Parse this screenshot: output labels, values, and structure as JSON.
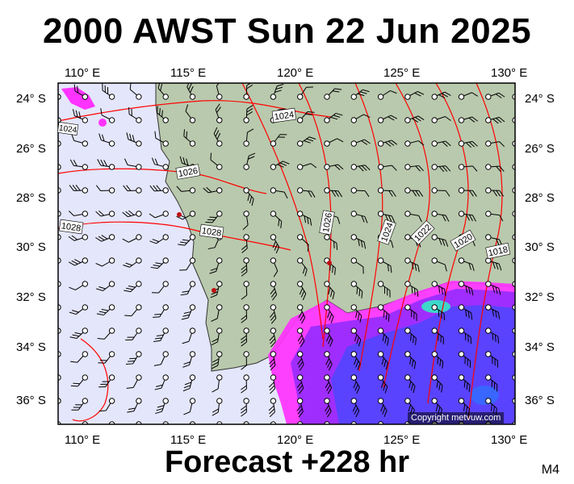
{
  "title": "2000 AWST Sun 22 Jun 2025",
  "footer": "Forecast +228 hr",
  "model_tag": "M4",
  "copyright": "Copyright metvuw.com",
  "lon_labels": [
    "110° E",
    "115° E",
    "120° E",
    "125° E",
    "130° E"
  ],
  "lat_labels": [
    "24° S",
    "26° S",
    "28° S",
    "30° S",
    "32° S",
    "34° S",
    "36° S"
  ],
  "isobar_labels": [
    "1024",
    "1024",
    "1026",
    "1026",
    "1028",
    "1028",
    "1024",
    "1022",
    "1020",
    "1018"
  ],
  "colors": {
    "ocean": "#e4e6fb",
    "land": "#b9c9ad",
    "isobar": "#ff0000",
    "rain_light": "#ff33ff",
    "rain_mid": "#9a1fff",
    "rain_heavy": "#3c3cff",
    "rain_extreme": "#2fd6c8"
  }
}
